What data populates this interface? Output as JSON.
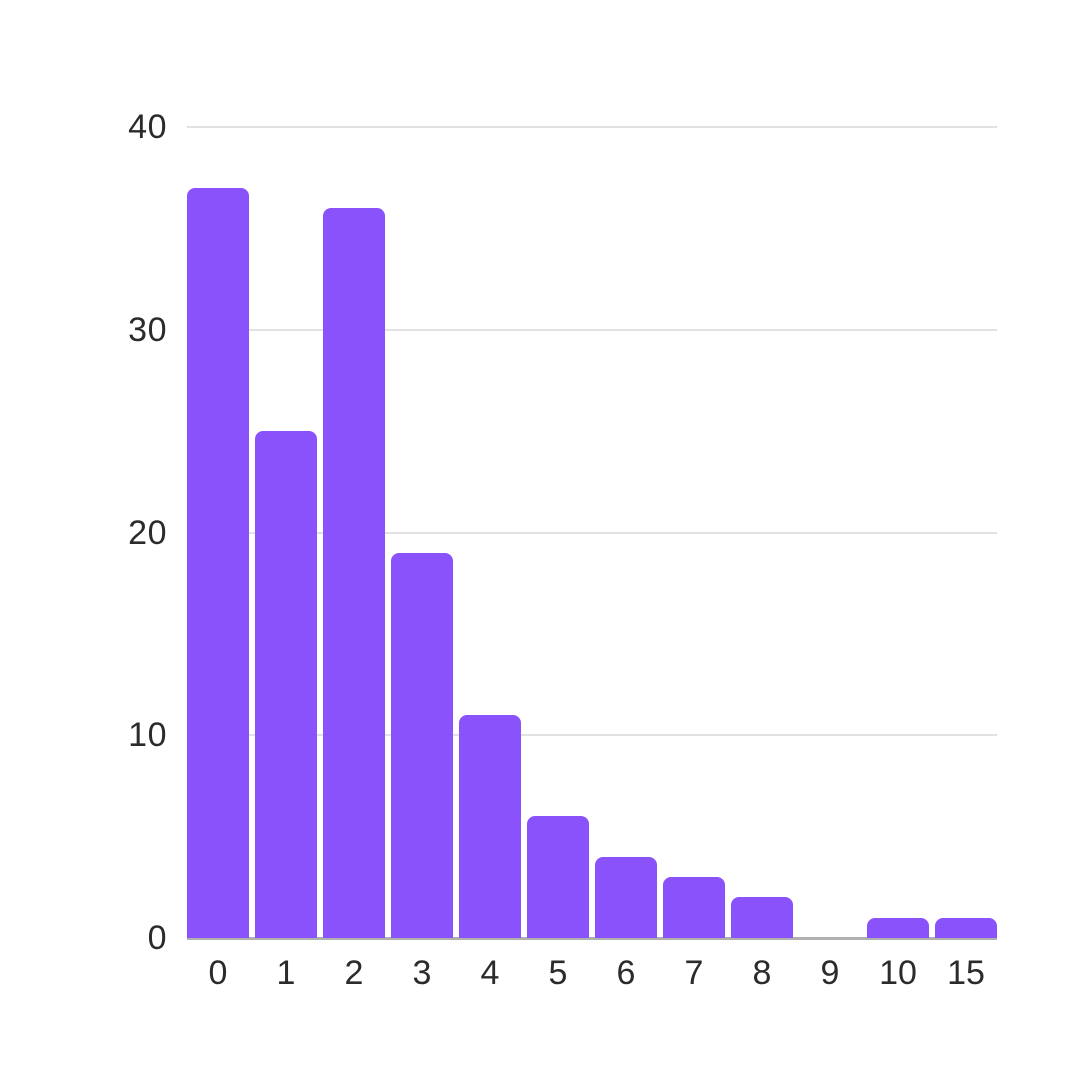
{
  "chart_data": {
    "type": "bar",
    "title": "",
    "xlabel": "",
    "ylabel": "",
    "categories": [
      "0",
      "1",
      "2",
      "3",
      "4",
      "5",
      "6",
      "7",
      "8",
      "9",
      "10",
      "15"
    ],
    "values": [
      37,
      25,
      36,
      19,
      11,
      6,
      4,
      3,
      2,
      0,
      1,
      1
    ],
    "ylim": [
      0,
      40
    ],
    "yticks": [
      0,
      10,
      20,
      30,
      40
    ],
    "grid": true,
    "legend": false,
    "colors": {
      "bar": "#8a52fb",
      "gridline": "#e2e2e2",
      "axis_line": "#b0b0b0",
      "tick_label": "#2b2b2b",
      "background": "#ffffff"
    }
  }
}
